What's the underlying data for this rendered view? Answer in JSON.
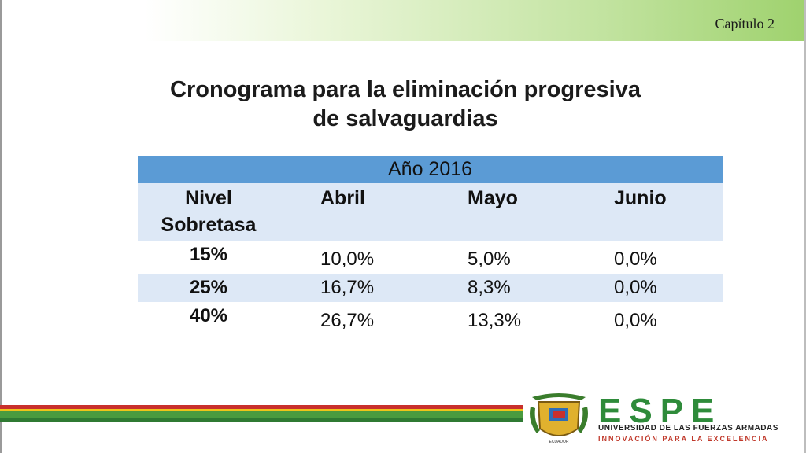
{
  "header": {
    "chapter": "Capítulo 2"
  },
  "title": {
    "line1": "Cronograma para la eliminación progresiva",
    "line2": "de salvaguardias"
  },
  "table": {
    "year_header": "Año 2016",
    "columns": [
      "Nivel Sobretasa",
      "Abril",
      "Mayo",
      "Junio"
    ],
    "rows": [
      [
        "15%",
        "10,0%",
        "5,0%",
        "0,0%"
      ],
      [
        "25%",
        "16,7%",
        "8,3%",
        "0,0%"
      ],
      [
        "40%",
        "26,7%",
        "13,3%",
        "0,0%"
      ]
    ]
  },
  "logo": {
    "name": "ESPE",
    "line1": "UNIVERSIDAD DE LAS FUERZAS ARMADAS",
    "line2": "INNOVACIÓN PARA LA EXCELENCIA",
    "brand_color": "#2e8b3a"
  },
  "colors": {
    "table_header": "#5b9bd5",
    "table_band": "#dde8f6",
    "top_band": "#9fd26e"
  }
}
